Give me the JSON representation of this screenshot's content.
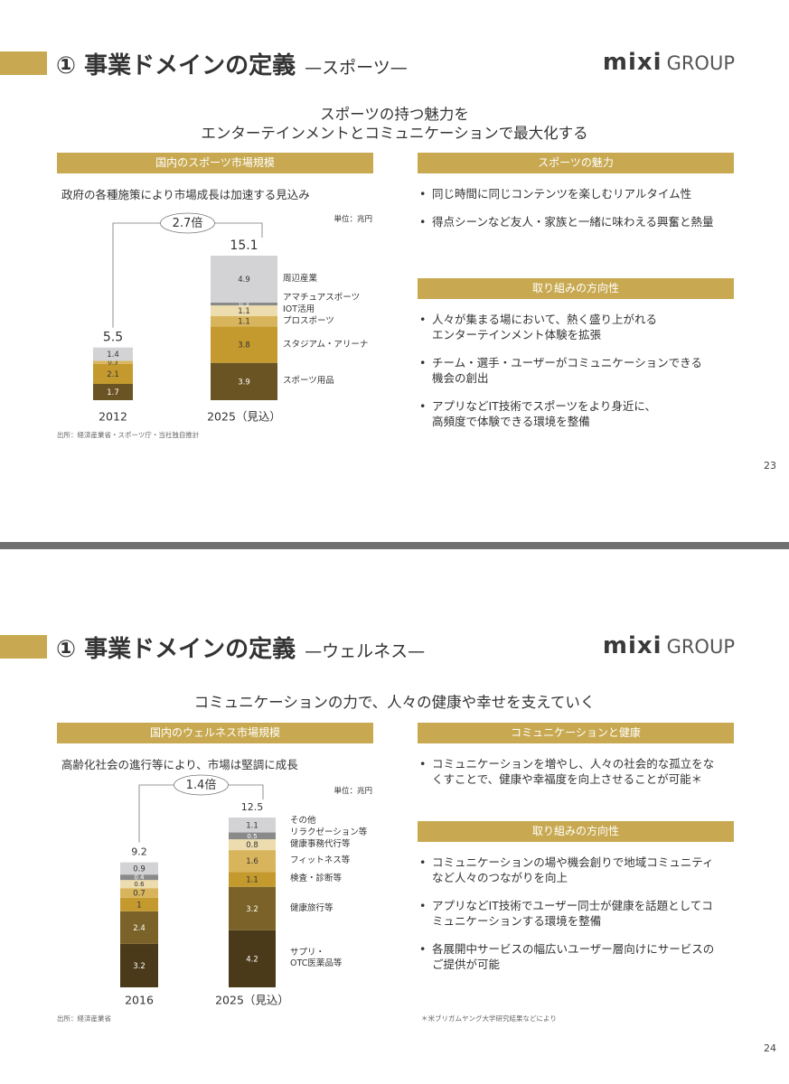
{
  "slides": [
    {
      "title": "① 事業ドメインの定義",
      "subtitle": "—スポーツ—",
      "logo": {
        "mark": "mixi",
        "group": "GROUP"
      },
      "tagline": [
        "スポーツの持つ魅力を",
        "エンターテインメントとコミュニケーションで最大化する"
      ],
      "left": {
        "header": "国内のスポーツ市場規模",
        "lead": "政府の各種施策により市場成長は加速する見込み",
        "unit": "単位：兆円",
        "chart": {
          "type": "bar",
          "stacked": true,
          "categories": [
            "2012",
            "2025（見込）"
          ],
          "totals": [
            5.5,
            15.1
          ],
          "growth": "2.7倍",
          "series": [
            {
              "name": "スポーツ用品",
              "color": "#6b5424",
              "values": [
                1.7,
                3.9
              ]
            },
            {
              "name": "スタジアム・アリーナ",
              "color": "#c49a2e",
              "values": [
                2.1,
                3.8
              ]
            },
            {
              "name": "プロスポーツ",
              "color": "#d8b55c",
              "values": [
                0.3,
                1.1
              ]
            },
            {
              "name": "IOT活用",
              "color": "#ecdcae",
              "values": [
                null,
                1.1
              ]
            },
            {
              "name": "アマチュアスポーツ",
              "color": "#8a8a8a",
              "values": [
                null,
                0.3
              ]
            },
            {
              "name": "周辺産業",
              "color": "#d3d3d6",
              "values": [
                1.4,
                4.9
              ]
            }
          ]
        },
        "source": "出所：経済産業省・スポーツ庁・当社独自推計"
      },
      "right": [
        {
          "header": "スポーツの魅力",
          "bullets": [
            "同じ時間に同じコンテンツを楽しむリアルタイム性",
            "得点シーンなど友人・家族と一緒に味わえる興奮と熱量"
          ]
        },
        {
          "header": "取り組みの方向性",
          "bullets": [
            "人々が集まる場において、熱く盛り上がれる\nエンターテインメント体験を拡張",
            "チーム・選手・ユーザーがコミュニケーションできる\n機会の創出",
            "アプリなどIT技術でスポーツをより身近に、\n高頻度で体験できる環境を整備"
          ]
        }
      ],
      "page": "23"
    },
    {
      "title": "① 事業ドメインの定義",
      "subtitle": "—ウェルネス—",
      "logo": {
        "mark": "mixi",
        "group": "GROUP"
      },
      "tagline": [
        "コミュニケーションの力で、人々の健康や幸せを支えていく"
      ],
      "left": {
        "header": "国内のウェルネス市場規模",
        "lead": "高齢化社会の進行等により、市場は堅調に成長",
        "unit": "単位：兆円",
        "chart": {
          "type": "bar",
          "stacked": true,
          "categories": [
            "2016",
            "2025（見込）"
          ],
          "totals": [
            9.2,
            12.5
          ],
          "growth": "1.4倍",
          "series": [
            {
              "name": "サプリ・\nOTC医薬品等",
              "color": "#4a3a1a",
              "values": [
                3.2,
                4.2
              ]
            },
            {
              "name": "健康旅行等",
              "color": "#7a6228",
              "values": [
                2.4,
                3.2
              ]
            },
            {
              "name": "検査・診断等",
              "color": "#c49a2e",
              "values": [
                1.0,
                1.1
              ]
            },
            {
              "name": "フィットネス等",
              "color": "#d8b55c",
              "values": [
                0.7,
                1.6
              ]
            },
            {
              "name": "健康事務代行等",
              "color": "#ecdcae",
              "values": [
                0.6,
                0.8
              ]
            },
            {
              "name": "リラクゼーション等",
              "color": "#8a8a8a",
              "values": [
                0.4,
                0.5
              ]
            },
            {
              "name": "その他",
              "color": "#d3d3d6",
              "values": [
                0.9,
                1.1
              ]
            }
          ]
        },
        "source": "出所：経済産業省"
      },
      "right": [
        {
          "header": "コミュニケーションと健康",
          "bullets": [
            "コミュニケーションを増やし、人々の社会的な孤立をな\nくすことで、健康や幸福度を向上させることが可能＊"
          ]
        },
        {
          "header": "取り組みの方向性",
          "bullets": [
            "コミュニケーションの場や機会創りで地域コミュニティ\nなど人々のつながりを向上",
            "アプリなどIT技術でユーザー同士が健康を話題としてコ\nミュニケーションする環境を整備",
            "各展開中サービスの幅広いユーザー層向けにサービスの\nご提供が可能"
          ]
        }
      ],
      "footnote": "＊米ブリガムヤング大学研究結果などにより",
      "page": "24"
    }
  ]
}
